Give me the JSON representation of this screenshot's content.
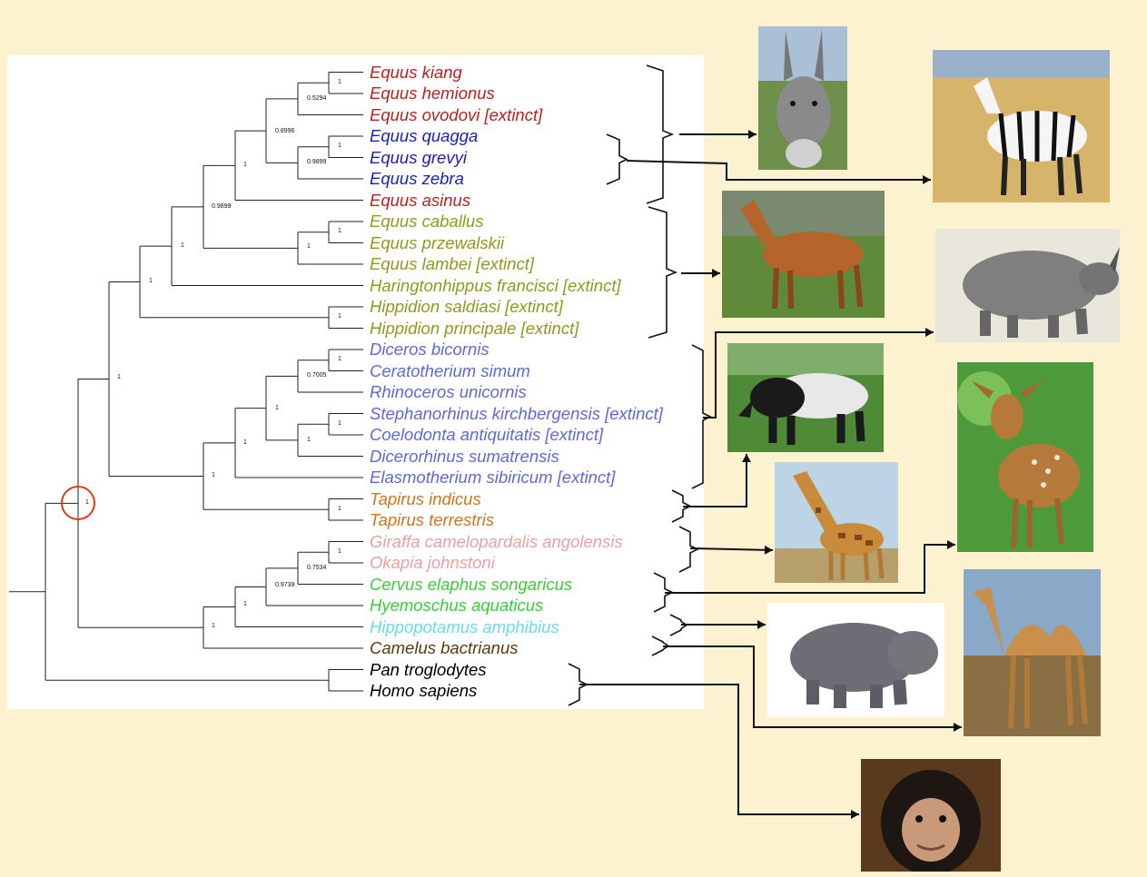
{
  "colors": {
    "background": "#fcf2cf",
    "equus_red": "#c0201c",
    "zebra_blue": "#1a1fb8",
    "horse_olive": "#8f9a1c",
    "rhino_slate": "#6068d8",
    "tapir_orange": "#d4741a",
    "giraffe_pink": "#e8a0a4",
    "cervid_green": "#36d036",
    "hippo_cyan": "#6ad8f0",
    "camel_brown": "#5a3a0c",
    "primate_black": "#000000",
    "highlight_circle": "#e03a1c"
  },
  "taxa": [
    {
      "name": "Equus kiang",
      "color": "#c0201c"
    },
    {
      "name": "Equus hemionus",
      "color": "#c0201c"
    },
    {
      "name": "Equus ovodovi [extinct]",
      "color": "#c0201c"
    },
    {
      "name": "Equus quagga",
      "color": "#1a1fb8"
    },
    {
      "name": "Equus grevyi",
      "color": "#1a1fb8"
    },
    {
      "name": "Equus zebra",
      "color": "#1a1fb8"
    },
    {
      "name": "Equus asinus",
      "color": "#c0201c"
    },
    {
      "name": "Equus caballus",
      "color": "#8f9a1c"
    },
    {
      "name": "Equus przewalskii",
      "color": "#8f9a1c"
    },
    {
      "name": "Equus lambei [extinct]",
      "color": "#8f9a1c"
    },
    {
      "name": "Haringtonhippus francisci [extinct]",
      "color": "#8f9a1c"
    },
    {
      "name": "Hippidion saldiasi [extinct]",
      "color": "#8f9a1c"
    },
    {
      "name": "Hippidion principale [extinct]",
      "color": "#8f9a1c"
    },
    {
      "name": "Diceros bicornis",
      "color": "#6068d8"
    },
    {
      "name": "Ceratotherium simum",
      "color": "#6068d8"
    },
    {
      "name": "Rhinoceros unicornis",
      "color": "#6068d8"
    },
    {
      "name": "Stephanorhinus kirchbergensis [extinct]",
      "color": "#6068d8"
    },
    {
      "name": "Coelodonta antiquitatis [extinct]",
      "color": "#6068d8"
    },
    {
      "name": "Dicerorhinus sumatrensis",
      "color": "#6068d8"
    },
    {
      "name": "Elasmotherium sibiricum [extinct]",
      "color": "#6068d8"
    },
    {
      "name": "Tapirus indicus",
      "color": "#d4741a"
    },
    {
      "name": "Tapirus terrestris",
      "color": "#d4741a"
    },
    {
      "name": "Giraffa camelopardalis angolensis",
      "color": "#e8a0a4"
    },
    {
      "name": "Okapia johnstoni",
      "color": "#e8a0a4"
    },
    {
      "name": "Cervus elaphus songaricus",
      "color": "#36d036"
    },
    {
      "name": "Hyemoschus aquaticus",
      "color": "#36d036"
    },
    {
      "name": "Hippopotamus amphibius",
      "color": "#6ad8f0"
    },
    {
      "name": "Camelus bactrianus",
      "color": "#5a3a0c"
    },
    {
      "name": "Pan troglodytes",
      "color": "#000000"
    },
    {
      "name": "Homo sapiens",
      "color": "#000000"
    }
  ],
  "support_values": [
    {
      "label": "1"
    },
    {
      "label": "0.5294"
    },
    {
      "label": "0.8996"
    },
    {
      "label": "1"
    },
    {
      "label": "0.9899"
    },
    {
      "label": "1"
    },
    {
      "label": "0.9899"
    },
    {
      "label": "1"
    },
    {
      "label": "1"
    },
    {
      "label": "1"
    },
    {
      "label": "1"
    },
    {
      "label": "1"
    },
    {
      "label": "1"
    },
    {
      "label": "0.7005"
    },
    {
      "label": "1"
    },
    {
      "label": "1"
    },
    {
      "label": "1"
    },
    {
      "label": "1"
    },
    {
      "label": "1"
    },
    {
      "label": "1"
    },
    {
      "label": "1"
    },
    {
      "label": "1"
    },
    {
      "label": "1"
    },
    {
      "label": "0.7534"
    },
    {
      "label": "0.9739"
    },
    {
      "label": "1"
    },
    {
      "label": "1"
    }
  ],
  "photos": [
    {
      "subject": "donkey",
      "icon": "donkey-photo"
    },
    {
      "subject": "zebra",
      "icon": "zebra-photo"
    },
    {
      "subject": "horse",
      "icon": "horse-photo"
    },
    {
      "subject": "rhinoceros",
      "icon": "rhinoceros-photo"
    },
    {
      "subject": "tapir",
      "icon": "tapir-photo"
    },
    {
      "subject": "deer fawn",
      "icon": "deer-photo"
    },
    {
      "subject": "giraffe",
      "icon": "giraffe-photo"
    },
    {
      "subject": "camel",
      "icon": "camel-photo"
    },
    {
      "subject": "hippopotamus",
      "icon": "hippopotamus-photo"
    },
    {
      "subject": "chimpanzee",
      "icon": "chimpanzee-photo"
    }
  ]
}
